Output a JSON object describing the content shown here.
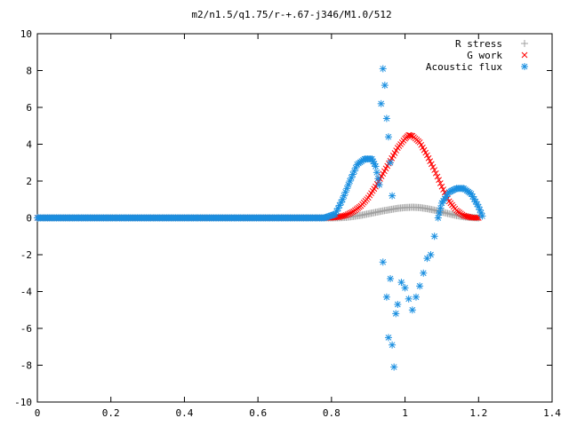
{
  "chart_data": {
    "type": "scatter",
    "title": "m2/n1.5/q1.75/r-+.67-j346/M1.0/512",
    "xlabel": "",
    "ylabel": "",
    "xlim": [
      0,
      1.4
    ],
    "ylim": [
      -10,
      10
    ],
    "xticks": [
      "0",
      "0.2",
      "0.4",
      "0.6",
      "0.8",
      "1",
      "1.2",
      "1.4"
    ],
    "yticks": [
      "-10",
      "-8",
      "-6",
      "-4",
      "-2",
      "0",
      "2",
      "4",
      "6",
      "8",
      "10"
    ],
    "grid": false,
    "legend_position": "top-right",
    "series": [
      {
        "name": "R stress",
        "marker": "plus",
        "color": "#a0a0a0",
        "points": [
          [
            0.0,
            0
          ],
          [
            0.1,
            0
          ],
          [
            0.2,
            0
          ],
          [
            0.3,
            0
          ],
          [
            0.4,
            0
          ],
          [
            0.5,
            0
          ],
          [
            0.6,
            0
          ],
          [
            0.7,
            0
          ],
          [
            0.78,
            0
          ],
          [
            0.8,
            0
          ],
          [
            0.82,
            0.01
          ],
          [
            0.84,
            0.03
          ],
          [
            0.86,
            0.08
          ],
          [
            0.88,
            0.14
          ],
          [
            0.9,
            0.22
          ],
          [
            0.92,
            0.3
          ],
          [
            0.94,
            0.38
          ],
          [
            0.96,
            0.45
          ],
          [
            0.98,
            0.52
          ],
          [
            1.0,
            0.56
          ],
          [
            1.02,
            0.58
          ],
          [
            1.04,
            0.56
          ],
          [
            1.06,
            0.5
          ],
          [
            1.08,
            0.42
          ],
          [
            1.1,
            0.32
          ],
          [
            1.12,
            0.22
          ],
          [
            1.14,
            0.13
          ],
          [
            1.16,
            0.06
          ],
          [
            1.18,
            0.02
          ],
          [
            1.2,
            0
          ]
        ]
      },
      {
        "name": "G work",
        "marker": "cross",
        "color": "#ff0000",
        "points": [
          [
            0.0,
            0
          ],
          [
            0.1,
            0
          ],
          [
            0.2,
            0
          ],
          [
            0.3,
            0
          ],
          [
            0.4,
            0
          ],
          [
            0.5,
            0
          ],
          [
            0.6,
            0
          ],
          [
            0.7,
            0
          ],
          [
            0.78,
            0
          ],
          [
            0.8,
            0.01
          ],
          [
            0.82,
            0.05
          ],
          [
            0.84,
            0.15
          ],
          [
            0.86,
            0.35
          ],
          [
            0.88,
            0.65
          ],
          [
            0.9,
            1.1
          ],
          [
            0.92,
            1.7
          ],
          [
            0.94,
            2.4
          ],
          [
            0.96,
            3.1
          ],
          [
            0.98,
            3.8
          ],
          [
            1.0,
            4.3
          ],
          [
            1.01,
            4.5
          ],
          [
            1.02,
            4.45
          ],
          [
            1.04,
            4.1
          ],
          [
            1.06,
            3.4
          ],
          [
            1.08,
            2.6
          ],
          [
            1.1,
            1.7
          ],
          [
            1.12,
            0.9
          ],
          [
            1.14,
            0.4
          ],
          [
            1.16,
            0.12
          ],
          [
            1.18,
            0.02
          ],
          [
            1.2,
            0
          ]
        ]
      },
      {
        "name": "Acoustic flux",
        "marker": "star",
        "color": "#1a8fe0",
        "points": [
          [
            0.0,
            0
          ],
          [
            0.1,
            0
          ],
          [
            0.2,
            0
          ],
          [
            0.3,
            0
          ],
          [
            0.4,
            0
          ],
          [
            0.5,
            0
          ],
          [
            0.6,
            0
          ],
          [
            0.7,
            0
          ],
          [
            0.78,
            0
          ],
          [
            0.81,
            0.2
          ],
          [
            0.83,
            1.0
          ],
          [
            0.85,
            2.0
          ],
          [
            0.87,
            2.9
          ],
          [
            0.89,
            3.2
          ],
          [
            0.91,
            3.2
          ],
          [
            0.92,
            2.8
          ],
          [
            0.93,
            1.8
          ],
          [
            0.935,
            6.2
          ],
          [
            0.94,
            8.1
          ],
          [
            0.945,
            7.2
          ],
          [
            0.95,
            5.4
          ],
          [
            0.955,
            4.4
          ],
          [
            0.96,
            3.0
          ],
          [
            0.965,
            1.2
          ],
          [
            0.94,
            -2.4
          ],
          [
            0.95,
            -4.3
          ],
          [
            0.96,
            -3.3
          ],
          [
            0.965,
            -6.9
          ],
          [
            0.97,
            -8.1
          ],
          [
            0.955,
            -6.5
          ],
          [
            0.975,
            -5.2
          ],
          [
            0.98,
            -4.7
          ],
          [
            0.99,
            -3.5
          ],
          [
            1.0,
            -3.8
          ],
          [
            1.01,
            -4.4
          ],
          [
            1.02,
            -5.0
          ],
          [
            1.03,
            -4.3
          ],
          [
            1.04,
            -3.7
          ],
          [
            1.05,
            -3.0
          ],
          [
            1.06,
            -2.2
          ],
          [
            1.07,
            -2.0
          ],
          [
            1.08,
            -1.0
          ],
          [
            1.09,
            0.0
          ],
          [
            1.1,
            0.8
          ],
          [
            1.12,
            1.4
          ],
          [
            1.14,
            1.6
          ],
          [
            1.16,
            1.6
          ],
          [
            1.18,
            1.3
          ],
          [
            1.2,
            0.6
          ],
          [
            1.21,
            0.1
          ]
        ]
      }
    ]
  }
}
